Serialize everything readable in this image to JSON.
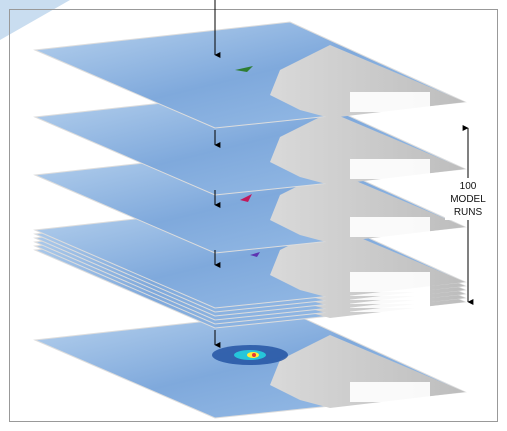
{
  "label": {
    "lines": [
      "100",
      "MODEL",
      "RUNS"
    ]
  }
}
